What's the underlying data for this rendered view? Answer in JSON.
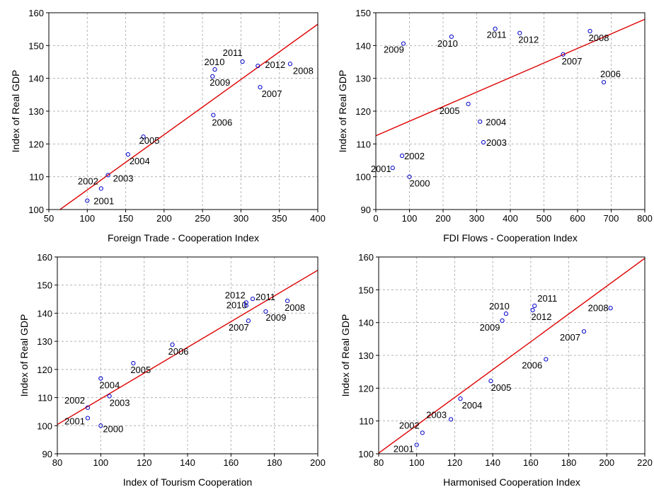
{
  "chart_data": [
    {
      "type": "scatter",
      "xlabel": "Foreign Trade - Cooperation Index",
      "ylabel": "Index of Real GDP",
      "xlim": [
        50,
        400
      ],
      "ylim": [
        100,
        160
      ],
      "xticks": [
        50,
        100,
        150,
        200,
        250,
        300,
        350,
        400
      ],
      "yticks": [
        100,
        110,
        120,
        130,
        140,
        150,
        160
      ],
      "grid": true,
      "points": [
        {
          "label": "2001",
          "x": 100,
          "y": 102.7
        },
        {
          "label": "2002",
          "x": 118,
          "y": 106.4
        },
        {
          "label": "2003",
          "x": 127,
          "y": 110.5
        },
        {
          "label": "2004",
          "x": 153,
          "y": 116.8
        },
        {
          "label": "2005",
          "x": 173,
          "y": 122.2
        },
        {
          "label": "2006",
          "x": 264,
          "y": 128.8
        },
        {
          "label": "2007",
          "x": 325,
          "y": 137.3
        },
        {
          "label": "2008",
          "x": 364,
          "y": 144.4
        },
        {
          "label": "2009",
          "x": 263,
          "y": 140.6
        },
        {
          "label": "2010",
          "x": 266,
          "y": 142.7
        },
        {
          "label": "2011",
          "x": 302,
          "y": 145.1
        },
        {
          "label": "2012",
          "x": 322,
          "y": 143.8
        }
      ],
      "fit_line": {
        "x": [
          55,
          400
        ],
        "y": [
          98.4,
          156.5
        ]
      },
      "point_color": "#0000cc",
      "line_color": "#dd0000"
    },
    {
      "type": "scatter",
      "xlabel": "FDI Flows - Cooperation Index",
      "ylabel": "Index of Real GDP",
      "xlim": [
        0,
        800
      ],
      "ylim": [
        90,
        150
      ],
      "xticks": [
        0,
        100,
        200,
        300,
        400,
        500,
        600,
        700,
        800
      ],
      "yticks": [
        90,
        100,
        110,
        120,
        130,
        140,
        150
      ],
      "grid": true,
      "points": [
        {
          "label": "2000",
          "x": 100,
          "y": 100
        },
        {
          "label": "2001",
          "x": 50,
          "y": 102.7
        },
        {
          "label": "2002",
          "x": 78,
          "y": 106.4
        },
        {
          "label": "2003",
          "x": 320,
          "y": 110.5
        },
        {
          "label": "2004",
          "x": 310,
          "y": 116.8
        },
        {
          "label": "2005",
          "x": 275,
          "y": 122.2
        },
        {
          "label": "2006",
          "x": 678,
          "y": 128.8
        },
        {
          "label": "2007",
          "x": 557,
          "y": 137.3
        },
        {
          "label": "2008",
          "x": 637,
          "y": 144.4
        },
        {
          "label": "2009",
          "x": 82,
          "y": 140.6
        },
        {
          "label": "2010",
          "x": 225,
          "y": 142.7
        },
        {
          "label": "2011",
          "x": 355,
          "y": 145.1
        },
        {
          "label": "2012",
          "x": 428,
          "y": 143.8
        }
      ],
      "fit_line": {
        "x": [
          0,
          800
        ],
        "y": [
          112.5,
          148.0
        ]
      },
      "point_color": "#0000cc",
      "line_color": "#dd0000"
    },
    {
      "type": "scatter",
      "xlabel": "Index of Tourism Cooperation",
      "ylabel": "Index of Real GDP",
      "xlim": [
        80,
        200
      ],
      "ylim": [
        90,
        160
      ],
      "xticks": [
        80,
        100,
        120,
        140,
        160,
        180,
        200
      ],
      "yticks": [
        90,
        100,
        110,
        120,
        130,
        140,
        150,
        160
      ],
      "grid": true,
      "points": [
        {
          "label": "2000",
          "x": 100,
          "y": 100
        },
        {
          "label": "2001",
          "x": 94,
          "y": 102.7
        },
        {
          "label": "2002",
          "x": 94,
          "y": 106.4
        },
        {
          "label": "2003",
          "x": 104,
          "y": 110.5
        },
        {
          "label": "2004",
          "x": 100,
          "y": 116.8
        },
        {
          "label": "2005",
          "x": 115,
          "y": 122.2
        },
        {
          "label": "2006",
          "x": 133,
          "y": 128.8
        },
        {
          "label": "2007",
          "x": 168,
          "y": 137.3
        },
        {
          "label": "2008",
          "x": 186,
          "y": 144.4
        },
        {
          "label": "2009",
          "x": 176,
          "y": 140.6
        },
        {
          "label": "2010",
          "x": 167,
          "y": 142.7
        },
        {
          "label": "2011",
          "x": 170,
          "y": 145.1
        },
        {
          "label": "2012",
          "x": 167,
          "y": 143.8
        }
      ],
      "fit_line": {
        "x": [
          80,
          200
        ],
        "y": [
          100.4,
          155.3
        ]
      },
      "point_color": "#0000cc",
      "line_color": "#dd0000"
    },
    {
      "type": "scatter",
      "xlabel": "Harmonised Cooperation Index",
      "ylabel": "Index of Real GDP",
      "xlim": [
        80,
        220
      ],
      "ylim": [
        100,
        160
      ],
      "xticks": [
        80,
        100,
        120,
        140,
        160,
        180,
        200,
        220
      ],
      "yticks": [
        100,
        110,
        120,
        130,
        140,
        150,
        160
      ],
      "grid": true,
      "points": [
        {
          "label": "2001",
          "x": 100,
          "y": 102.7
        },
        {
          "label": "2002",
          "x": 103,
          "y": 106.4
        },
        {
          "label": "2003",
          "x": 118,
          "y": 110.5
        },
        {
          "label": "2004",
          "x": 123,
          "y": 116.8
        },
        {
          "label": "2005",
          "x": 139,
          "y": 122.2
        },
        {
          "label": "2006",
          "x": 168,
          "y": 128.8
        },
        {
          "label": "2007",
          "x": 188,
          "y": 137.3
        },
        {
          "label": "2008",
          "x": 202,
          "y": 144.4
        },
        {
          "label": "2009",
          "x": 145,
          "y": 140.6
        },
        {
          "label": "2010",
          "x": 147,
          "y": 142.7
        },
        {
          "label": "2011",
          "x": 162,
          "y": 145.1
        },
        {
          "label": "2012",
          "x": 161,
          "y": 143.8
        }
      ],
      "fit_line": {
        "x": [
          80,
          220
        ],
        "y": [
          100.2,
          159.6
        ]
      },
      "point_color": "#0000cc",
      "line_color": "#dd0000"
    }
  ]
}
